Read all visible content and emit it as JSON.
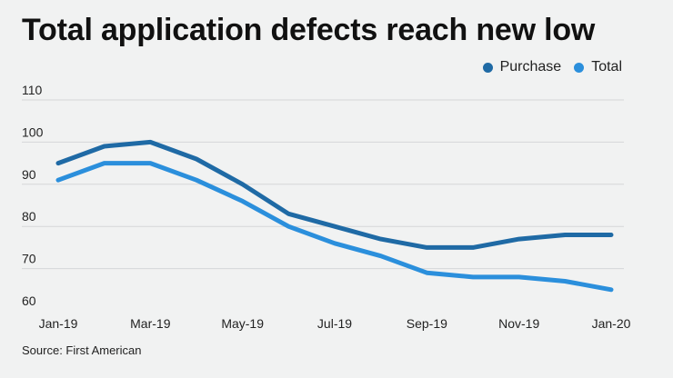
{
  "title": "Total application defects reach new low",
  "source": "Source: First American",
  "colors": {
    "purchase": "#1f6aa5",
    "total": "#2b8fdc",
    "grid": "#d5d6d8"
  },
  "chart_data": {
    "type": "line",
    "title": "Total application defects reach new low",
    "xlabel": "",
    "ylabel": "",
    "ylim": [
      60,
      110
    ],
    "yticks": [
      60,
      70,
      80,
      90,
      100,
      110
    ],
    "grid": true,
    "legend_position": "top-right",
    "x": [
      "Jan-19",
      "Feb-19",
      "Mar-19",
      "Apr-19",
      "May-19",
      "Jun-19",
      "Jul-19",
      "Aug-19",
      "Sep-19",
      "Oct-19",
      "Nov-19",
      "Dec-19",
      "Jan-20"
    ],
    "xtick_labels": [
      "Jan-19",
      "Mar-19",
      "May-19",
      "Jul-19",
      "Sep-19",
      "Nov-19",
      "Jan-20"
    ],
    "series": [
      {
        "name": "Purchase",
        "values": [
          95,
          99,
          100,
          96,
          90,
          83,
          80,
          77,
          75,
          75,
          77,
          78,
          78
        ]
      },
      {
        "name": "Total",
        "values": [
          91,
          95,
          95,
          91,
          86,
          80,
          76,
          73,
          69,
          68,
          68,
          67,
          65
        ]
      }
    ]
  }
}
